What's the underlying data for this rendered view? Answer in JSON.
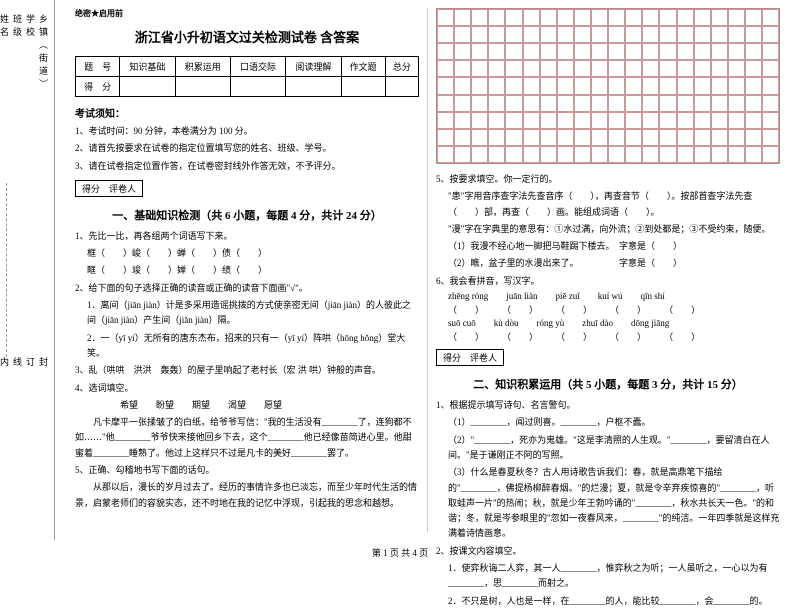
{
  "secret": "绝密★启用前",
  "title": "浙江省小升初语文过关检测试卷 含答案",
  "binding": {
    "labels": [
      "乡镇（街道）",
      "学校",
      "班级",
      "姓名",
      "学号"
    ],
    "marks": [
      "封",
      "订",
      "线",
      "内",
      "不",
      "准",
      "答",
      "题"
    ]
  },
  "scoreTable": {
    "row1": [
      "题　号",
      "知识基础",
      "积累运用",
      "口语交际",
      "阅读理解",
      "作文题",
      "总分"
    ],
    "row2": [
      "得　分",
      "",
      "",
      "",
      "",
      "",
      ""
    ]
  },
  "notice": {
    "heading": "考试须知：",
    "items": [
      "1、考试时间：90 分钟，本卷满分为 100 分。",
      "2、请首先按要求在试卷的指定位置填写您的姓名、班级、学号。",
      "3、请在试卷指定位置作答，在试卷密封线外作答无效，不予评分。"
    ]
  },
  "scoreLabel": "得分　评卷人",
  "section1": {
    "title": "一、基础知识检测（共 6 小题，每题 4 分，共计 24 分）",
    "q1": "1、先比一比，再各组两个词语写下来。",
    "q1a": "框（　　）峻（　　）蝉（　　）债（　　）",
    "q1b": "眶（　　）竣（　　）婵（　　）绩（　　）",
    "q2": "2、给下面的句子选择正确的读音或正确的读音下面画\"√\"。",
    "q2a": "1．离间（jiān jiàn）计是多采用造谣挑拨的方式使亲密无间（jiān jiàn）的人彼此之间（jiān jiàn）产生间（jiān jiàn）隔。",
    "q2b": "2．一（yī yí）无所有的唐东杰布，招来的只有一（yī yí）阵哄（hōng hǒng）堂大笑。",
    "q3": "3、乱（哄哄　洪洪　轰轰）的屋子里响起了老村长（宏 洪 哄）钟般的声音。",
    "q4": "4、选词填空。",
    "q4a": "　　　　　希望　　盼望　　期望　　渴望　　愿望",
    "q4b": "　　凡卡摩平一张揉皱了的白纸，给爷爷写信：\"我的生活没有________了，连狗都不如……\"他________爷爷快来接他回乡下去，这个________他已经像苗简进心里。他甜蜜着________睡熟了。他过上这样只不过是凡卡的美好________罢了。",
    "q5": "5、正确、勾稽地书写下面的话句。",
    "q5a": "　　从那以后，漫长的岁月过去了。经历的事情许多也已淡忘，而至少年时代生活的情景，启蒙老师们的容貌实态，还不时地在我的记忆中浮现，引起我的思念和越想。"
  },
  "right": {
    "q5head": "5、按要求填空。你一定行的。",
    "q5a": "\"患\"字用音序查字法先查音序（　　），再查音节（　　）。按部首查字法先查（　　）部，再查（　　）画。能组成词语（　　）。",
    "q5b": "\"漫\"字在字典里的意思有：①水过满，向外流；②到处都是；③不受约束，随便。",
    "q5c": "（1）我漫不经心地一脚把马鞋踢下楼去。　字意是（　　）",
    "q5d": "（2）瞧，盆子里的水漫出来了。　　　　　字意是（　　）",
    "q6": "6、我会看拼音，写汉字。",
    "pinyin1": [
      "zhēng róng",
      "juān liàn",
      "piē zuǐ",
      "kuí wú",
      "qīn shí"
    ],
    "paren1": [
      "（　　）",
      "（　　）",
      "（　　）",
      "（　　）",
      "（　　）"
    ],
    "pinyin2": [
      "suō cuō",
      "kù dòu",
      "róng yù",
      "zhuī dào",
      "dōng jiāng"
    ],
    "paren2": [
      "（　　）",
      "（　　）",
      "（　　）",
      "（　　）",
      "（　　）"
    ]
  },
  "section2": {
    "title": "二、知识积累运用（共 5 小题，每题 3 分，共计 15 分）",
    "q1": "1、根据提示填写诗句、名言警句。",
    "q1a": "（1）________，闻过则喜。________，户枢不蠹。",
    "q1b": "（2）\"________，死亦为鬼雄。\"这是李清照的人生观。\"________，要留清白在人间。\"是于谦刚正不阿的写照。",
    "q1c": "（3）什么是春夏秋冬？古人用诗歌告诉我们：春，就是高鼎笔下描绘的\"________，佛提杨柳醉春烟。\"的烂漫；夏，就是令辛弃疾惊喜的\"________，听取蛙声一片\"的热闹；秋，就是少年王勃吟诵的\"________，秋水共长天一色。\"的和谐；冬，就是岑参眼里的\"忽如一夜春风来，________\"的纯洁。一年四季就是这样充满着诗情画意。",
    "q2": "2、按课文内容填空。",
    "q2a": "1．使弈秋诲二人弈，其一人________，惟弈秋之为听；一人虽听之，一心以为有________，思________而射之。",
    "q2b": "2．不只是树，人也是一样，在________的人，能比较________，会________的。"
  },
  "footer": "第 1 页 共 4 页"
}
